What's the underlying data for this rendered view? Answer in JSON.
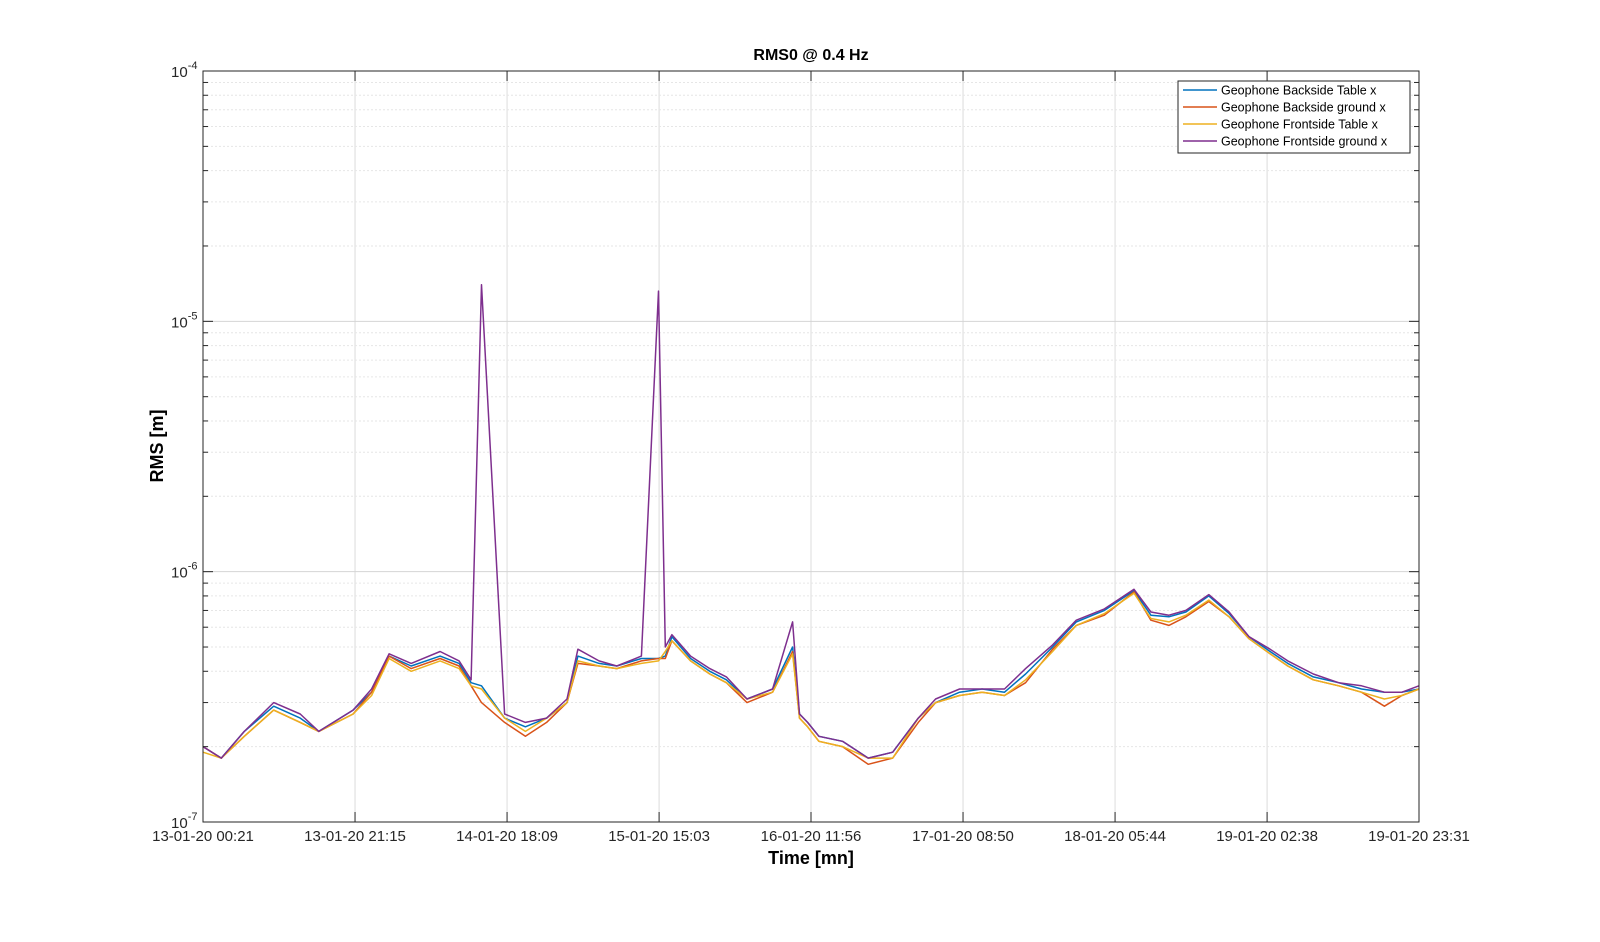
{
  "chart_data": {
    "type": "line",
    "title": "RMS0 @ 0.4 Hz",
    "xlabel": "Time [mn]",
    "ylabel": "RMS [m]",
    "yscale": "log",
    "ylim": [
      1e-07,
      0.0001
    ],
    "ytick_labels": [
      {
        "base": "10",
        "exp": "-7",
        "value": 1e-07
      },
      {
        "base": "10",
        "exp": "-6",
        "value": 1e-06
      },
      {
        "base": "10",
        "exp": "-5",
        "value": 1e-05
      },
      {
        "base": "10",
        "exp": "-4",
        "value": 0.0001
      }
    ],
    "xlim": [
      "13-01-20 00:21",
      "19-01-20 23:31"
    ],
    "xtick_labels": [
      "13-01-20 00:21",
      "13-01-20 21:15",
      "14-01-20 18:09",
      "15-01-20 15:03",
      "16-01-20 11:56",
      "17-01-20 08:50",
      "18-01-20 05:44",
      "19-01-20 02:38",
      "19-01-20 23:31"
    ],
    "grid": true,
    "legend_position": "top-right",
    "series": [
      {
        "name": "Geophone Backside Table x",
        "color": "#0072BD"
      },
      {
        "name": "Geophone Backside ground x",
        "color": "#D95319"
      },
      {
        "name": "Geophone Frontside Table x",
        "color": "#EDB120"
      },
      {
        "name": "Geophone Frontside ground x",
        "color": "#7E2F8E"
      }
    ],
    "x": [
      "13-01-20 00:21",
      "13-01-20 02:52",
      "13-01-20 06:02",
      "13-01-20 10:04",
      "13-01-20 13:43",
      "13-01-20 16:16",
      "13-01-20 20:59",
      "13-01-20 23:32",
      "14-01-20 01:56",
      "14-01-20 04:58",
      "14-01-20 08:57",
      "14-01-20 11:33",
      "14-01-20 13:12",
      "14-01-20 14:38",
      "14-01-20 17:49",
      "14-01-20 20:40",
      "14-01-20 23:35",
      "15-01-20 02:23",
      "15-01-20 03:53",
      "15-01-20 06:47",
      "15-01-20 09:14",
      "15-01-20 12:37",
      "15-01-20 14:58",
      "15-01-20 15:54",
      "15-01-20 16:49",
      "15-01-20 19:23",
      "15-01-20 22:01",
      "16-01-20 00:18",
      "16-01-20 03:08",
      "16-01-20 06:39",
      "16-01-20 09:24",
      "16-01-20 10:21",
      "16-01-20 11:28",
      "16-01-20 13:01",
      "16-01-20 16:16",
      "16-01-20 19:48",
      "16-01-20 23:10",
      "17-01-20 02:41",
      "17-01-20 05:04",
      "17-01-20 08:22",
      "17-01-20 11:27",
      "17-01-20 14:32",
      "17-01-20 17:26",
      "17-01-20 21:09",
      "18-01-20 00:24",
      "18-01-20 04:16",
      "18-01-20 08:20",
      "18-01-20 10:40",
      "18-01-20 13:08",
      "18-01-20 15:28",
      "18-01-20 18:37",
      "18-01-20 21:25",
      "19-01-20 00:09",
      "19-01-20 03:03",
      "19-01-20 05:29",
      "19-01-20 08:59",
      "19-01-20 12:28",
      "19-01-20 15:37",
      "19-01-20 18:46",
      "19-01-20 21:10",
      "19-01-20 23:31"
    ],
    "values": {
      "Geophone Backside Table x": [
        2e-07,
        1.8e-07,
        2.3e-07,
        2.9e-07,
        2.6e-07,
        2.3e-07,
        2.8e-07,
        3.3e-07,
        4.6e-07,
        4.2e-07,
        4.6e-07,
        4.3e-07,
        3.6e-07,
        3.5e-07,
        2.6e-07,
        2.4e-07,
        2.6e-07,
        3e-07,
        4.6e-07,
        4.3e-07,
        4.2e-07,
        4.5e-07,
        4.5e-07,
        4.6e-07,
        5.5e-07,
        4.5e-07,
        4e-07,
        3.7e-07,
        3.1e-07,
        3.4e-07,
        5e-07,
        2.7e-07,
        2.5e-07,
        2.2e-07,
        2.1e-07,
        1.8e-07,
        1.9e-07,
        2.6e-07,
        3e-07,
        3.3e-07,
        3.4e-07,
        3.3e-07,
        3.9e-07,
        5e-07,
        6.3e-07,
        7e-07,
        8.4e-07,
        6.7e-07,
        6.6e-07,
        6.9e-07,
        8e-07,
        6.8e-07,
        5.5e-07,
        4.8e-07,
        4.3e-07,
        3.8e-07,
        3.6e-07,
        3.4e-07,
        3.3e-07,
        3.3e-07,
        3.4e-07
      ],
      "Geophone Backside ground x": [
        2e-07,
        1.8e-07,
        2.2e-07,
        2.8e-07,
        2.5e-07,
        2.3e-07,
        2.7e-07,
        3.3e-07,
        4.6e-07,
        4.1e-07,
        4.5e-07,
        4.2e-07,
        3.5e-07,
        3e-07,
        2.5e-07,
        2.2e-07,
        2.5e-07,
        3e-07,
        4.3e-07,
        4.2e-07,
        4.1e-07,
        4.4e-07,
        4.5e-07,
        4.5e-07,
        5.3e-07,
        4.4e-07,
        3.9e-07,
        3.6e-07,
        3e-07,
        3.3e-07,
        4.8e-07,
        2.6e-07,
        2.4e-07,
        2.1e-07,
        2e-07,
        1.7e-07,
        1.8e-07,
        2.5e-07,
        3e-07,
        3.2e-07,
        3.3e-07,
        3.2e-07,
        3.6e-07,
        4.9e-07,
        6.1e-07,
        6.7e-07,
        8.3e-07,
        6.4e-07,
        6.1e-07,
        6.6e-07,
        7.6e-07,
        6.6e-07,
        5.4e-07,
        4.7e-07,
        4.2e-07,
        3.7e-07,
        3.5e-07,
        3.3e-07,
        2.9e-07,
        3.2e-07,
        3.4e-07
      ],
      "Geophone Frontside Table x": [
        1.9e-07,
        1.8e-07,
        2.2e-07,
        2.8e-07,
        2.5e-07,
        2.3e-07,
        2.7e-07,
        3.2e-07,
        4.5e-07,
        4e-07,
        4.4e-07,
        4.1e-07,
        3.5e-07,
        3.4e-07,
        2.6e-07,
        2.3e-07,
        2.6e-07,
        3e-07,
        4.4e-07,
        4.2e-07,
        4.1e-07,
        4.3e-07,
        4.4e-07,
        4.8e-07,
        5.3e-07,
        4.4e-07,
        3.9e-07,
        3.6e-07,
        3.1e-07,
        3.3e-07,
        4.7e-07,
        2.6e-07,
        2.4e-07,
        2.1e-07,
        2e-07,
        1.8e-07,
        1.8e-07,
        2.6e-07,
        3e-07,
        3.2e-07,
        3.3e-07,
        3.2e-07,
        3.7e-07,
        4.8e-07,
        6.1e-07,
        6.8e-07,
        8.2e-07,
        6.5e-07,
        6.3e-07,
        6.7e-07,
        7.7e-07,
        6.6e-07,
        5.4e-07,
        4.7e-07,
        4.2e-07,
        3.7e-07,
        3.5e-07,
        3.3e-07,
        3.1e-07,
        3.2e-07,
        3.4e-07
      ],
      "Geophone Frontside ground x": [
        2e-07,
        1.8e-07,
        2.3e-07,
        3e-07,
        2.7e-07,
        2.3e-07,
        2.8e-07,
        3.4e-07,
        4.7e-07,
        4.3e-07,
        4.8e-07,
        4.4e-07,
        3.7e-07,
        1.4e-05,
        2.7e-07,
        2.5e-07,
        2.6e-07,
        3.1e-07,
        4.9e-07,
        4.4e-07,
        4.2e-07,
        4.6e-07,
        1.32e-05,
        5e-07,
        5.6e-07,
        4.6e-07,
        4.1e-07,
        3.8e-07,
        3.1e-07,
        3.4e-07,
        6.3e-07,
        2.7e-07,
        2.5e-07,
        2.2e-07,
        2.1e-07,
        1.8e-07,
        1.9e-07,
        2.6e-07,
        3.1e-07,
        3.4e-07,
        3.4e-07,
        3.4e-07,
        4.1e-07,
        5.1e-07,
        6.4e-07,
        7.1e-07,
        8.5e-07,
        6.9e-07,
        6.7e-07,
        7e-07,
        8.1e-07,
        6.9e-07,
        5.5e-07,
        4.9e-07,
        4.4e-07,
        3.9e-07,
        3.6e-07,
        3.5e-07,
        3.3e-07,
        3.3e-07,
        3.5e-07
      ]
    }
  }
}
